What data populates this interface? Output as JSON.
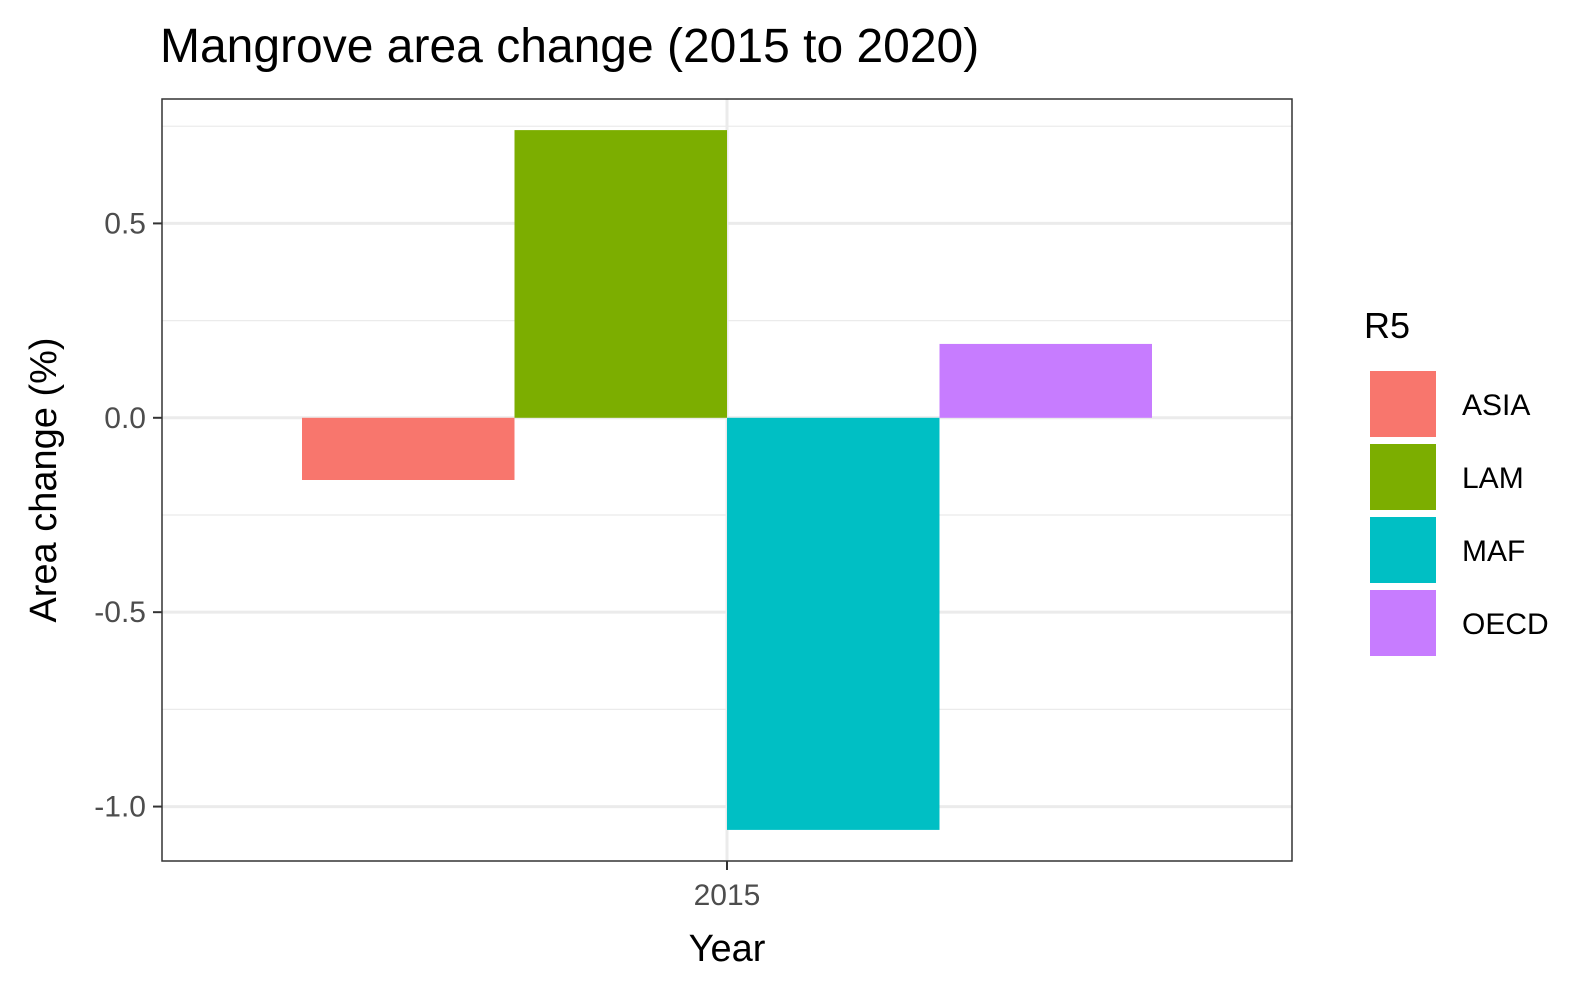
{
  "chart_data": {
    "type": "bar",
    "title": "Mangrove area change (2015 to 2020)",
    "xlabel": "Year",
    "ylabel": "Area change (%)",
    "categories": [
      "2015"
    ],
    "series": [
      {
        "name": "ASIA",
        "values": [
          -0.16
        ],
        "color": "#F8766D"
      },
      {
        "name": "LAM",
        "values": [
          0.74
        ],
        "color": "#7CAE00"
      },
      {
        "name": "MAF",
        "values": [
          -1.06
        ],
        "color": "#00BFC4"
      },
      {
        "name": "OECD",
        "values": [
          0.19
        ],
        "color": "#C77CFF"
      }
    ],
    "ylim": [
      -1.14,
      0.82
    ],
    "yticks": [
      {
        "value": 0.5,
        "label": "0.5"
      },
      {
        "value": 0.0,
        "label": "0.0"
      },
      {
        "value": -0.5,
        "label": "-0.5"
      },
      {
        "value": -1.0,
        "label": "-1.0"
      }
    ],
    "legend": {
      "title": "R5",
      "position": "right"
    },
    "grid": true
  }
}
